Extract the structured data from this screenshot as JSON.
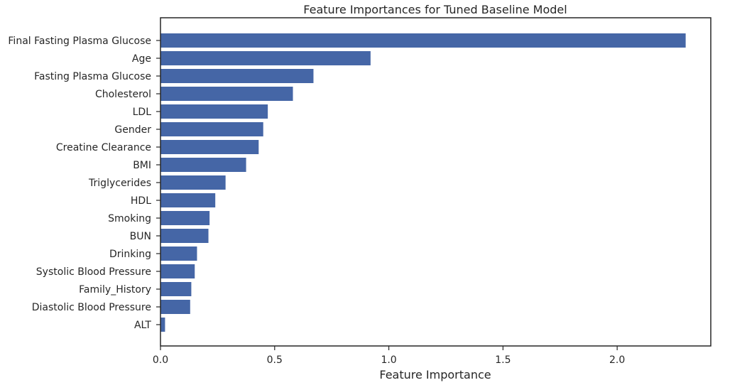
{
  "chart_data": {
    "type": "bar",
    "orientation": "horizontal",
    "title": "Feature Importances for Tuned Baseline Model",
    "xlabel": "Feature Importance",
    "ylabel": "",
    "xlim": [
      0,
      2.41
    ],
    "xticks": [
      0,
      0.5,
      1,
      1.5,
      2
    ],
    "xtick_labels": [
      "0.0",
      "0.5",
      "1.0",
      "1.5",
      "2.0"
    ],
    "grid": false,
    "legend": false,
    "bar_color": "#4566a6",
    "categories": [
      "Final Fasting Plasma Glucose",
      "Age",
      "Fasting Plasma Glucose",
      "Cholesterol",
      "LDL",
      "Gender",
      "Creatine Clearance",
      "BMI",
      "Triglycerides",
      "HDL",
      "Smoking",
      "BUN",
      "Drinking",
      "Systolic Blood Pressure",
      "Family_History",
      "Diastolic Blood Pressure",
      "ALT"
    ],
    "values": [
      2.3,
      0.92,
      0.67,
      0.58,
      0.47,
      0.45,
      0.43,
      0.375,
      0.285,
      0.24,
      0.215,
      0.21,
      0.16,
      0.15,
      0.135,
      0.13,
      0.02
    ]
  }
}
